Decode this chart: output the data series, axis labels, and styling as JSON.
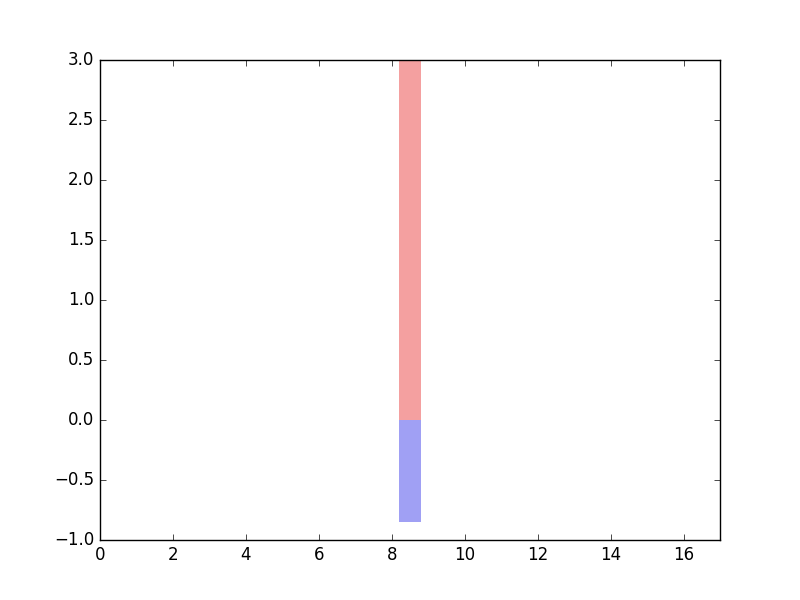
{
  "xlim": [
    0,
    17
  ],
  "ylim": [
    -1.0,
    3.0
  ],
  "xticks": [
    0,
    2,
    4,
    6,
    8,
    10,
    12,
    14,
    16
  ],
  "yticks": [
    -1.0,
    -0.5,
    0.0,
    0.5,
    1.0,
    1.5,
    2.0,
    2.5,
    3.0
  ],
  "bar_x": 8.5,
  "bar_width": 0.6,
  "pos_bar_height": 3.0,
  "neg_bar_height": -0.85,
  "pos_bar_color": "#f4a0a0",
  "neg_bar_color": "#a0a0f4",
  "background_color": "#ffffff",
  "figsize": [
    8.0,
    6.0
  ],
  "dpi": 100
}
